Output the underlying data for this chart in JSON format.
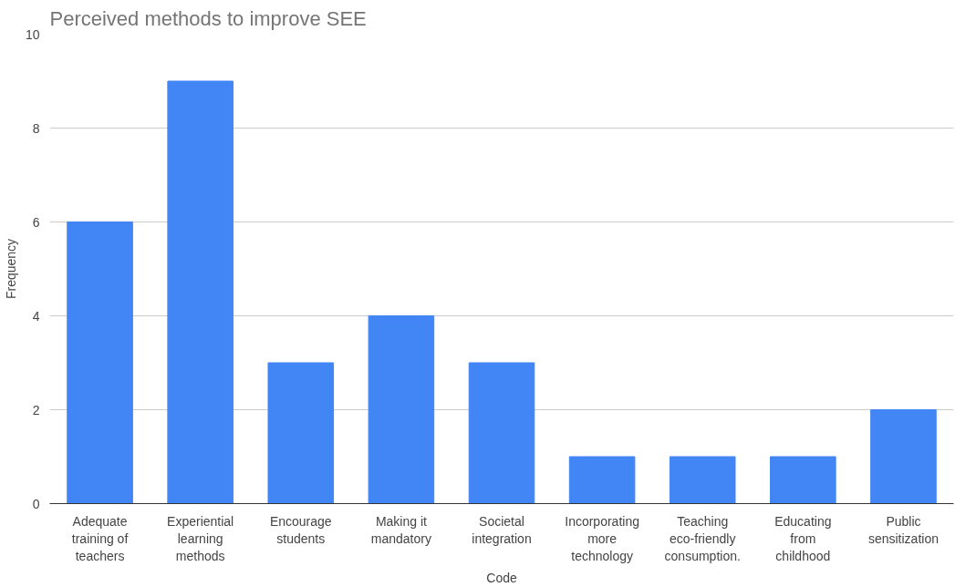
{
  "chart_data": {
    "type": "bar",
    "title": "Perceived methods to improve SEE",
    "xlabel": "Code",
    "ylabel": "Frequency",
    "categories": [
      "Adequate training of teachers",
      "Experiential learning methods",
      "Encourage students",
      "Making it mandatory",
      "Societal integration",
      "Incorporating more technology",
      "Teaching eco-friendly consumption.",
      "Educating from childhood",
      "Public sensitization"
    ],
    "values": [
      6,
      9,
      3,
      4,
      3,
      1,
      1,
      1,
      2
    ],
    "color": "#4285f4",
    "ylim": [
      0,
      10
    ],
    "yticks": [
      0,
      2,
      4,
      6,
      8,
      10
    ],
    "grid": "y"
  }
}
